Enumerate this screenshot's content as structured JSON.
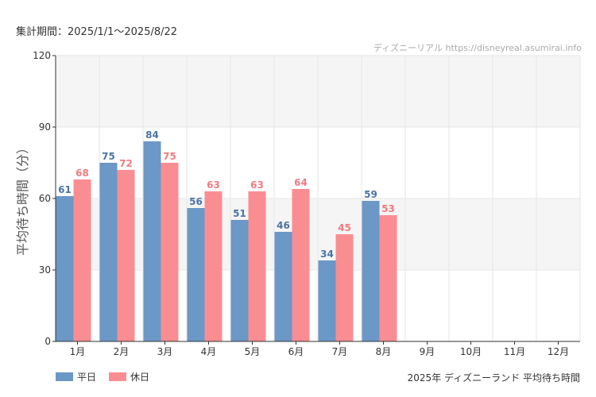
{
  "header": {
    "period": "集計期間：2025/1/1〜2025/8/22",
    "credit": "ディズニーリアル https://disneyreal.asumirai.info"
  },
  "colors": {
    "weekday": "#6b98c6",
    "weekday_label": "#4a74a8",
    "holiday": "#fa8d91",
    "holiday_label": "#f07a80",
    "band": "#f5f5f5",
    "grid": "#e6e6e6",
    "axis": "#333333"
  },
  "chart_data": {
    "type": "bar",
    "subtitle": "2025年 ディズニーランド 平均待ち時間",
    "ylabel": "平均待ち時間（分）",
    "xlabel": "",
    "categories": [
      "1月",
      "2月",
      "3月",
      "4月",
      "5月",
      "6月",
      "7月",
      "8月",
      "9月",
      "10月",
      "11月",
      "12月"
    ],
    "ylim": [
      0,
      120
    ],
    "yticks": [
      0,
      30,
      60,
      90,
      120
    ],
    "grid": true,
    "legend_position": "bottom-left",
    "series": [
      {
        "name": "平日",
        "values": [
          61,
          75,
          84,
          56,
          51,
          46,
          34,
          59,
          null,
          null,
          null,
          null
        ]
      },
      {
        "name": "休日",
        "values": [
          68,
          72,
          75,
          63,
          63,
          64,
          45,
          53,
          null,
          null,
          null,
          null
        ]
      }
    ]
  }
}
